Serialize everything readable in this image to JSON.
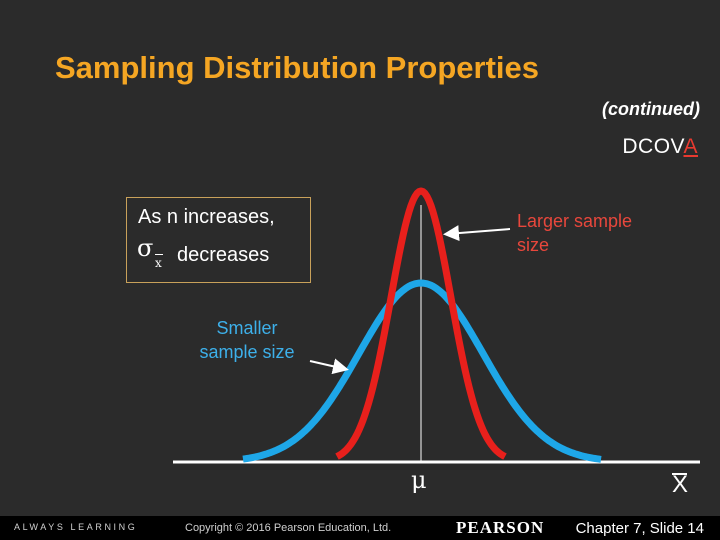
{
  "title": "Sampling Distribution Properties",
  "continued": "(continued)",
  "dcova": {
    "prefix": "DCOV",
    "highlight": "A"
  },
  "callout": {
    "line1": "As n  increases,",
    "sigma": "σ",
    "subscript": "x",
    "line2": "decreases"
  },
  "labels": {
    "larger_line1": "Larger sample",
    "larger_line2": "size",
    "smaller_line1": "Smaller",
    "smaller_line2": "sample size",
    "mu": "μ",
    "xbar": "X"
  },
  "colors": {
    "title": "#f5a623",
    "larger_curve": "#e8201c",
    "smaller_curve": "#1ea7e8"
  },
  "footer": {
    "tagline": "ALWAYS LEARNING",
    "copyright": "Copyright © 2016 Pearson Education, Ltd.",
    "brand": "PEARSON",
    "slide": "Chapter 7, Slide 14"
  }
}
